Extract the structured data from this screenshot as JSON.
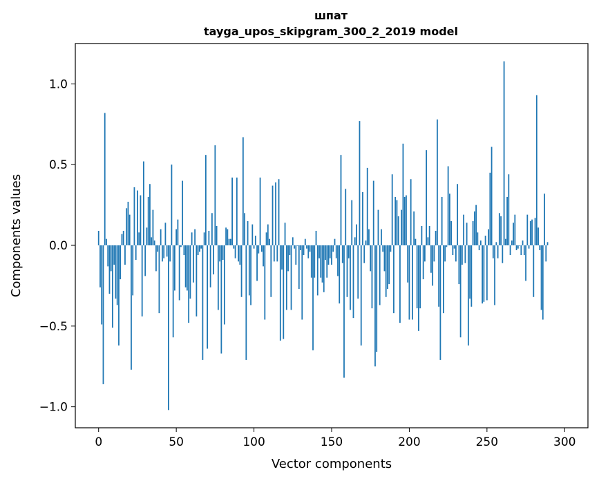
{
  "chart_data": {
    "type": "bar",
    "title": "шпат",
    "subtitle": "tayga_upos_skipgram_300_2_2019 model",
    "xlabel": "Vector components",
    "ylabel": "Components values",
    "xlim": [
      -15,
      315
    ],
    "ylim": [
      -1.13,
      1.25
    ],
    "xticks": [
      0,
      50,
      100,
      150,
      200,
      250,
      300
    ],
    "xtick_labels": [
      "0",
      "50",
      "100",
      "150",
      "200",
      "250",
      "300"
    ],
    "yticks": [
      -1.0,
      -0.5,
      0.0,
      0.5,
      1.0
    ],
    "ytick_labels": [
      "−1.0",
      "−0.5",
      "0.0",
      "0.5",
      "1.0"
    ],
    "grid": false,
    "legend": "none",
    "bar_color": "#1f77b4",
    "values": [
      0.09,
      -0.26,
      -0.49,
      -0.86,
      0.82,
      0.04,
      -0.13,
      -0.3,
      -0.16,
      -0.51,
      -0.12,
      -0.33,
      -0.37,
      -0.62,
      -0.21,
      0.07,
      0.09,
      -0.12,
      0.23,
      0.27,
      0.19,
      -0.77,
      -0.31,
      0.36,
      -0.09,
      0.34,
      0.08,
      0.31,
      -0.44,
      0.52,
      -0.19,
      0.11,
      0.3,
      0.38,
      0.05,
      0.22,
      0.03,
      -0.16,
      -0.04,
      -0.42,
      0.1,
      -0.1,
      -0.08,
      0.14,
      -0.07,
      -1.02,
      -0.1,
      0.5,
      -0.57,
      -0.28,
      0.1,
      0.16,
      -0.34,
      -0.01,
      0.4,
      -0.06,
      -0.26,
      -0.28,
      -0.48,
      -0.33,
      0.08,
      -0.23,
      0.1,
      -0.44,
      -0.06,
      -0.04,
      -0.02,
      -0.71,
      0.08,
      0.56,
      -0.64,
      0.09,
      -0.26,
      0.2,
      -0.18,
      0.62,
      0.12,
      -0.4,
      -0.1,
      -0.67,
      -0.09,
      -0.49,
      0.11,
      0.1,
      0.04,
      0.04,
      0.42,
      -0.02,
      -0.08,
      0.42,
      -0.1,
      -0.12,
      -0.32,
      0.67,
      0.2,
      -0.71,
      0.15,
      -0.31,
      -0.37,
      0.13,
      -0.02,
      0.06,
      -0.22,
      -0.05,
      0.42,
      -0.04,
      -0.13,
      -0.46,
      0.08,
      0.13,
      0.04,
      -0.32,
      0.37,
      -0.1,
      0.39,
      -0.1,
      0.41,
      -0.59,
      -0.15,
      -0.58,
      0.14,
      -0.4,
      -0.16,
      -0.06,
      -0.4,
      0.05,
      -0.02,
      -0.12,
      0.0,
      -0.27,
      -0.03,
      -0.46,
      -0.06,
      0.04,
      -0.02,
      -0.08,
      -0.04,
      -0.2,
      -0.65,
      -0.2,
      0.09,
      -0.31,
      -0.08,
      -0.2,
      -0.23,
      -0.29,
      -0.09,
      -0.2,
      -0.12,
      -0.08,
      -0.12,
      -0.04,
      0.04,
      -0.08,
      -0.19,
      -0.36,
      0.56,
      -0.11,
      -0.82,
      0.35,
      -0.32,
      -0.08,
      -0.4,
      0.28,
      -0.45,
      0.05,
      0.13,
      -0.33,
      0.77,
      -0.62,
      0.33,
      -0.11,
      0.03,
      0.48,
      0.1,
      -0.16,
      -0.39,
      0.4,
      -0.75,
      -0.66,
      0.22,
      -0.37,
      0.1,
      -0.04,
      -0.16,
      -0.32,
      -0.27,
      -0.24,
      -0.04,
      0.44,
      -0.42,
      0.3,
      0.28,
      0.18,
      -0.48,
      0.22,
      0.63,
      0.3,
      0.31,
      -0.23,
      -0.46,
      0.41,
      -0.46,
      0.21,
      0.04,
      -0.39,
      -0.53,
      -0.39,
      0.12,
      -0.21,
      -0.1,
      0.59,
      0.05,
      0.12,
      -0.17,
      -0.25,
      -0.1,
      0.09,
      0.78,
      -0.38,
      -0.71,
      0.3,
      -0.42,
      -0.1,
      -0.01,
      0.49,
      0.32,
      0.15,
      -0.06,
      -0.02,
      -0.1,
      0.38,
      -0.24,
      -0.57,
      -0.12,
      0.19,
      -0.11,
      0.14,
      -0.62,
      -0.33,
      -0.38,
      0.15,
      0.21,
      0.25,
      0.08,
      -0.03,
      0.03,
      -0.36,
      -0.35,
      0.06,
      -0.34,
      0.1,
      0.45,
      0.61,
      -0.08,
      -0.37,
      0.02,
      -0.08,
      0.2,
      0.18,
      -0.11,
      1.14,
      0.04,
      0.3,
      0.44,
      -0.06,
      0.03,
      0.14,
      0.19,
      -0.03,
      -0.02,
      0.0,
      -0.06,
      0.03,
      -0.06,
      -0.22,
      0.19,
      -0.02,
      0.15,
      0.16,
      -0.32,
      0.17,
      0.93,
      0.11,
      -0.03,
      -0.4,
      -0.46,
      0.32,
      -0.1,
      0.02
    ]
  }
}
